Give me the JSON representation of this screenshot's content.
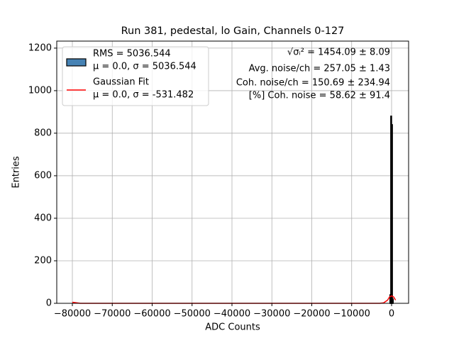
{
  "chart_data": {
    "type": "histogram",
    "title": "Run 381, pedestal, lo Gain, Channels 0-127",
    "xlabel": "ADC Counts",
    "ylabel": "Entries",
    "xlim": [
      -83911,
      4267
    ],
    "ylim": [
      0,
      1233
    ],
    "xticks": [
      {
        "value": -80000,
        "label": "−80000"
      },
      {
        "value": -70000,
        "label": "−70000"
      },
      {
        "value": -60000,
        "label": "−60000"
      },
      {
        "value": -50000,
        "label": "−50000"
      },
      {
        "value": -40000,
        "label": "−40000"
      },
      {
        "value": -30000,
        "label": "−30000"
      },
      {
        "value": -20000,
        "label": "−20000"
      },
      {
        "value": -10000,
        "label": "−10000"
      },
      0
    ],
    "yticks": [
      0,
      200,
      400,
      600,
      800,
      1000,
      1200
    ],
    "grid": true,
    "legend": "upper left",
    "series": [
      {
        "name": "RMS = 5036.544",
        "detail": "μ = 0.0, σ = 5036.544",
        "type": "histogram",
        "color": "#4682b4",
        "bins": [
          -400,
          -200,
          0,
          200,
          400
        ],
        "values": [
          40,
          880,
          840,
          20
        ]
      },
      {
        "name": "Gaussian Fit",
        "detail": "μ = 0.0, σ = -531.482",
        "type": "line",
        "color": "#ff0000",
        "x": [
          -80000,
          -78000,
          -60000,
          -40000,
          -20000,
          -3000,
          -2000,
          -1000,
          -500,
          0,
          500,
          1000
        ],
        "values": [
          5,
          0,
          0,
          0,
          0,
          0,
          2,
          15,
          30,
          35,
          30,
          15
        ]
      }
    ],
    "annotations": [
      "√σᵢ² = 1454.09 ± 8.09",
      "Avg. noise/ch = 257.05 ± 1.43",
      "Coh. noise/ch = 150.69 ± 234.94",
      "[%] Coh. noise = 58.62 ± 91.4"
    ]
  }
}
